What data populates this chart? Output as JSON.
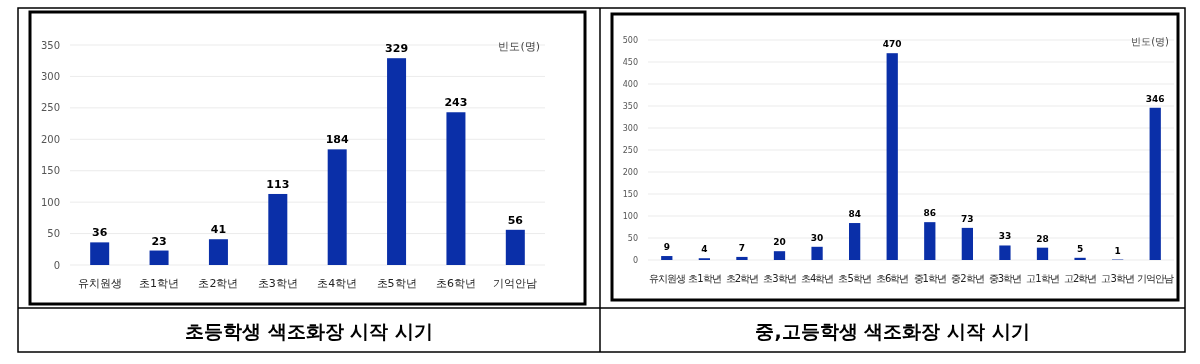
{
  "chart_data": [
    {
      "type": "bar",
      "title": "초등학생 색조화장 시작 시기",
      "ylabel": "빈도(명)",
      "categories": [
        "유치원생",
        "초1학년",
        "초2학년",
        "초3학년",
        "초4학년",
        "초5학년",
        "초6학년",
        "기억안남"
      ],
      "values": [
        36,
        23,
        41,
        113,
        184,
        329,
        243,
        56
      ],
      "color": "#0a2fa8",
      "ylim": [
        0,
        350
      ],
      "yticks": [
        0,
        50,
        100,
        150,
        200,
        250,
        300,
        350
      ],
      "grid": "y",
      "data_labels": true
    },
    {
      "type": "bar",
      "title": "중,고등학생 색조화장 시작 시기",
      "ylabel": "빈도(명)",
      "categories": [
        "유치원생",
        "초1학년",
        "초2학년",
        "초3학년",
        "초4학년",
        "초5학년",
        "초6학년",
        "중1학년",
        "중2학년",
        "중3학년",
        "고1학년",
        "고2학년",
        "고3학년",
        "기억안남"
      ],
      "values": [
        9,
        4,
        7,
        20,
        30,
        84,
        470,
        86,
        73,
        33,
        28,
        5,
        1,
        346
      ],
      "color": "#0a2fa8",
      "ylim": [
        0,
        500
      ],
      "yticks": [
        0,
        50,
        100,
        150,
        200,
        250,
        300,
        350,
        400,
        450,
        500
      ],
      "grid": "y",
      "data_labels": true
    }
  ]
}
